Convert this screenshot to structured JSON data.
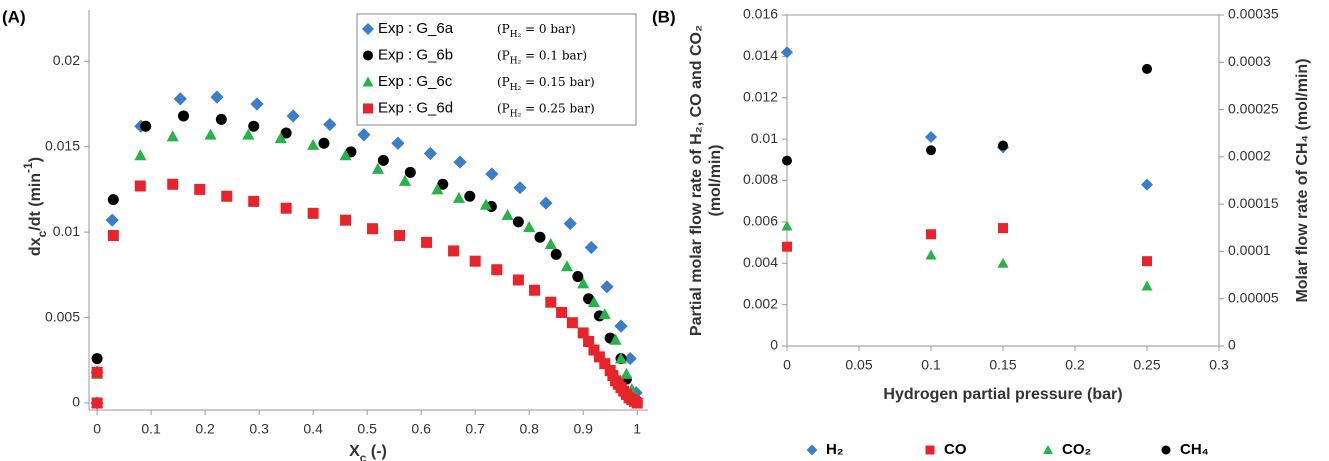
{
  "chart_data": [
    {
      "type": "scatter",
      "panel": "(A)",
      "x_label": [
        {
          "text": "X"
        },
        {
          "text": "c",
          "shift": "sub"
        },
        {
          "text": " (-)"
        }
      ],
      "y_label": [
        {
          "text": "dx"
        },
        {
          "text": "c",
          "shift": "sub"
        },
        {
          "text": "/dt (min"
        },
        {
          "text": "-1",
          "shift": "super"
        },
        {
          "text": ")"
        }
      ],
      "xlim": [
        -0.015,
        1.02
      ],
      "ylim": [
        0,
        0.023
      ],
      "xticks": [
        0,
        0.1,
        0.2,
        0.3,
        0.4,
        0.5,
        0.6,
        0.7,
        0.8,
        0.9,
        1
      ],
      "yticks": [
        0,
        0.005,
        0.01,
        0.015,
        0.02
      ],
      "frame": false,
      "legend": "upper right",
      "series": [
        {
          "name": "Exp : G_6a",
          "condition": [
            {
              "text": "(P"
            },
            {
              "text": "H₂",
              "shift": "sub"
            },
            {
              "text": " = 0 bar)"
            }
          ],
          "color": "#3a7dc9",
          "marker": "diamond",
          "x": [
            0,
            0,
            0.028,
            0.081,
            0.154,
            0.222,
            0.296,
            0.363,
            0.431,
            0.494,
            0.557,
            0.617,
            0.672,
            0.731,
            0.783,
            0.831,
            0.876,
            0.915,
            0.944,
            0.97,
            0.987,
            0.998
          ],
          "values": [
            0,
            0.0018,
            0.0107,
            0.0162,
            0.0178,
            0.0179,
            0.0175,
            0.0168,
            0.0163,
            0.0157,
            0.0152,
            0.0146,
            0.0141,
            0.0134,
            0.0126,
            0.0117,
            0.0105,
            0.0091,
            0.0068,
            0.0045,
            0.0026,
            0.0006
          ]
        },
        {
          "name": "Exp : G_6b",
          "condition": [
            {
              "text": "(P"
            },
            {
              "text": "H₂",
              "shift": "sub"
            },
            {
              "text": " = 0.1 bar)"
            }
          ],
          "color": "#000000",
          "marker": "circle",
          "x": [
            0,
            0,
            0.03,
            0.09,
            0.16,
            0.23,
            0.29,
            0.35,
            0.42,
            0.47,
            0.53,
            0.58,
            0.64,
            0.69,
            0.73,
            0.78,
            0.82,
            0.85,
            0.89,
            0.91,
            0.93,
            0.95,
            0.97,
            0.98,
            0.99,
            1
          ],
          "values": [
            0,
            0.0026,
            0.0119,
            0.0162,
            0.0168,
            0.0166,
            0.0162,
            0.0158,
            0.0152,
            0.0147,
            0.0142,
            0.0135,
            0.0128,
            0.0121,
            0.0115,
            0.0106,
            0.0097,
            0.0087,
            0.0074,
            0.0061,
            0.0051,
            0.0038,
            0.0026,
            0.0014,
            0.0005,
            0.0001
          ]
        },
        {
          "name": "Exp : G_6c",
          "condition": [
            {
              "text": "(P"
            },
            {
              "text": "H₂",
              "shift": "sub"
            },
            {
              "text": " = 0.15 bar)"
            }
          ],
          "color": "#27b24a",
          "marker": "triangle",
          "x": [
            0,
            0,
            0.08,
            0.14,
            0.21,
            0.28,
            0.34,
            0.4,
            0.46,
            0.52,
            0.57,
            0.63,
            0.67,
            0.72,
            0.76,
            0.8,
            0.84,
            0.87,
            0.9,
            0.92,
            0.94,
            0.96,
            0.97,
            0.98,
            0.99,
            1
          ],
          "values": [
            0,
            0.0017,
            0.0145,
            0.0156,
            0.0157,
            0.0157,
            0.0155,
            0.0151,
            0.0145,
            0.0137,
            0.013,
            0.0125,
            0.012,
            0.0116,
            0.011,
            0.0103,
            0.0093,
            0.008,
            0.007,
            0.0059,
            0.0052,
            0.0037,
            0.0026,
            0.0017,
            0.0008,
            0.0002
          ]
        },
        {
          "name": "Exp : G_6d",
          "condition": [
            {
              "text": "(P"
            },
            {
              "text": "H₂",
              "shift": "sub"
            },
            {
              "text": " = 0.25 bar)"
            }
          ],
          "color": "#e8232a",
          "marker": "square",
          "x": [
            0,
            0,
            0.03,
            0.08,
            0.14,
            0.19,
            0.24,
            0.29,
            0.35,
            0.4,
            0.46,
            0.51,
            0.56,
            0.61,
            0.66,
            0.7,
            0.74,
            0.78,
            0.81,
            0.84,
            0.86,
            0.88,
            0.9,
            0.91,
            0.92,
            0.93,
            0.94,
            0.95,
            0.955,
            0.96,
            0.965,
            0.97,
            0.975,
            0.98,
            0.985,
            0.99,
            0.995,
            1
          ],
          "values": [
            0,
            0.0018,
            0.0098,
            0.0127,
            0.0128,
            0.0125,
            0.0121,
            0.0118,
            0.0114,
            0.0111,
            0.0107,
            0.0102,
            0.0098,
            0.0094,
            0.0089,
            0.0083,
            0.0078,
            0.0072,
            0.0066,
            0.0059,
            0.0053,
            0.0047,
            0.0041,
            0.0036,
            0.0031,
            0.0027,
            0.0023,
            0.0019,
            0.0016,
            0.0013,
            0.0011,
            0.0009,
            0.0007,
            0.0005,
            0.0003,
            0.0002,
            0.0001,
            0
          ]
        }
      ]
    },
    {
      "type": "scatter",
      "panel": "(B)",
      "x_label": "Hydrogen partial pressure (bar)",
      "y_label": [
        "Partial molar flow rate of H₂, CO and CO₂",
        "(mol/min)"
      ],
      "y2_label": "Molar flow rate of CH₄ (mol/min)",
      "xlim": [
        0,
        0.3
      ],
      "ylim": [
        0,
        0.016
      ],
      "y2lim": [
        0,
        0.00035
      ],
      "xticks": [
        0,
        0.05,
        0.1,
        0.15,
        0.2,
        0.25,
        0.3
      ],
      "yticks": [
        0,
        0.002,
        0.004,
        0.006,
        0.008,
        0.01,
        0.012,
        0.014,
        0.016
      ],
      "y2ticks": [
        0,
        5e-05,
        0.0001,
        0.00015,
        0.0002,
        0.00025,
        0.0003,
        0.00035
      ],
      "frame": true,
      "legend": "bottom",
      "x": [
        0,
        0.1,
        0.15,
        0.25
      ],
      "series": [
        {
          "name": "H₂",
          "color": "#3a7dc9",
          "marker": "diamond",
          "values": [
            0.0142,
            0.0101,
            0.0096,
            0.0078
          ]
        },
        {
          "name": "CO",
          "color": "#e8232a",
          "marker": "square",
          "values": [
            0.0048,
            0.0054,
            0.0057,
            0.0041
          ]
        },
        {
          "name": "CO₂",
          "color": "#27b24a",
          "marker": "triangle",
          "values": [
            0.0058,
            0.0044,
            0.004,
            0.0029
          ]
        },
        {
          "name": "CH₄",
          "color": "#000000",
          "marker": "circle",
          "axis": "y2",
          "values": [
            0.000196,
            0.000207,
            0.000212,
            0.000293
          ]
        }
      ]
    }
  ]
}
